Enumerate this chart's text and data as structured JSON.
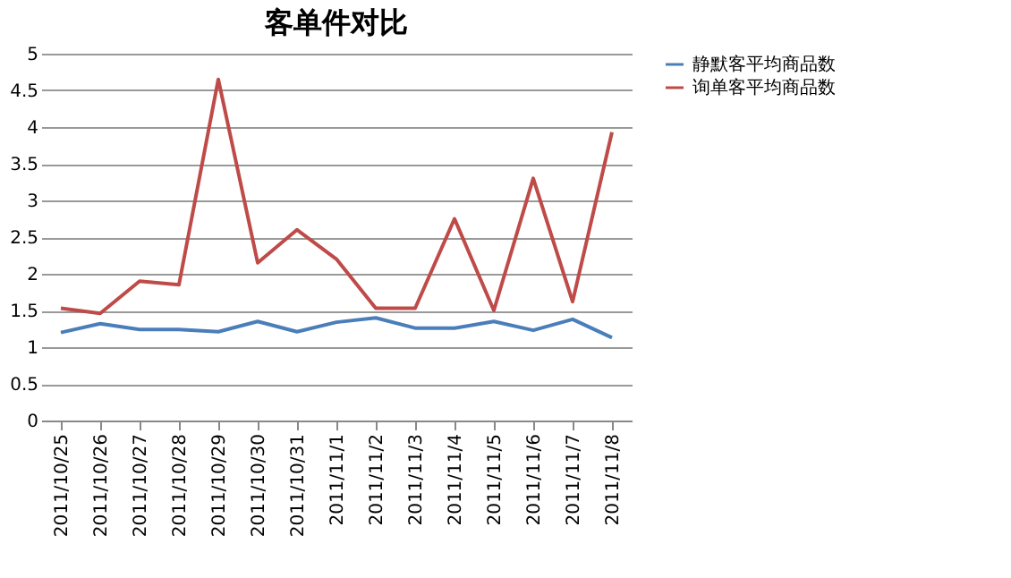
{
  "chart_data": {
    "type": "line",
    "title": "客单件对比",
    "categories": [
      "2011/10/25",
      "2011/10/26",
      "2011/10/27",
      "2011/10/28",
      "2011/10/29",
      "2011/10/30",
      "2011/10/31",
      "2011/11/1",
      "2011/11/2",
      "2011/11/3",
      "2011/11/4",
      "2011/11/5",
      "2011/11/6",
      "2011/11/7",
      "2011/11/8"
    ],
    "series": [
      {
        "name": "静默客平均商品数",
        "color": "#4a7ebb",
        "values": [
          1.2,
          1.32,
          1.24,
          1.24,
          1.21,
          1.35,
          1.21,
          1.34,
          1.4,
          1.26,
          1.26,
          1.35,
          1.23,
          1.38,
          1.13
        ]
      },
      {
        "name": "询单客平均商品数",
        "color": "#be4b48",
        "values": [
          1.53,
          1.46,
          1.9,
          1.85,
          4.65,
          2.15,
          2.6,
          2.2,
          1.53,
          1.53,
          2.75,
          1.5,
          3.3,
          1.62,
          3.93
        ]
      }
    ],
    "ylim": [
      0,
      5
    ],
    "yticks": [
      0,
      0.5,
      1,
      1.5,
      2,
      2.5,
      3,
      3.5,
      4,
      4.5,
      5
    ],
    "grid": "y",
    "legend": "right",
    "marker": "none",
    "line_style": "solid"
  }
}
